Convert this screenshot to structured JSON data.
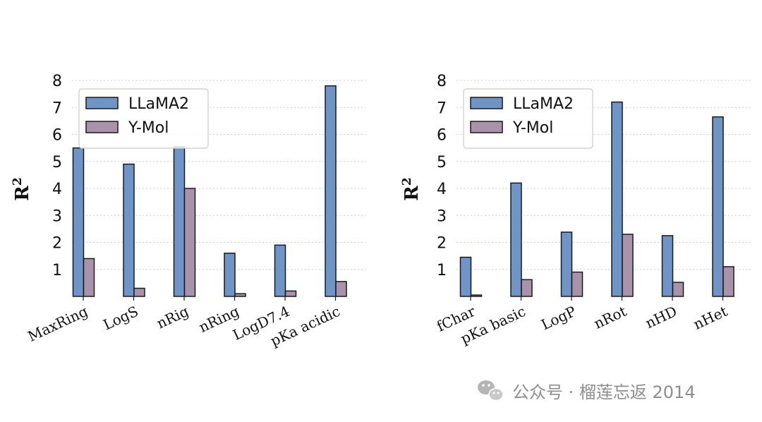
{
  "chart_data": [
    {
      "type": "bar",
      "categories": [
        "MaxRing",
        "LogS",
        "nRig",
        "nRing",
        "LogD7.4",
        "pKa acidic"
      ],
      "series": [
        {
          "name": "LLaMA2",
          "values": [
            5.5,
            4.9,
            5.55,
            1.6,
            1.9,
            7.8
          ]
        },
        {
          "name": "Y-Mol",
          "values": [
            1.4,
            0.3,
            4.0,
            0.1,
            0.2,
            0.55
          ]
        }
      ],
      "ylabel": "R",
      "ylabel_sup": "2",
      "ylim": [
        0,
        8.3
      ],
      "yticks": [
        "1",
        "2",
        "3",
        "4",
        "5",
        "6",
        "7",
        "8"
      ],
      "grid": "y-dotted",
      "legend_position": "top-left"
    },
    {
      "type": "bar",
      "categories": [
        "fChar",
        "pKa basic",
        "LogP",
        "nRot",
        "nHD",
        "nHet"
      ],
      "series": [
        {
          "name": "LLaMA2",
          "values": [
            1.45,
            4.2,
            2.38,
            7.2,
            2.25,
            6.65
          ]
        },
        {
          "name": "Y-Mol",
          "values": [
            0.05,
            0.62,
            0.9,
            2.3,
            0.52,
            1.1
          ]
        }
      ],
      "ylabel": "R",
      "ylabel_sup": "2",
      "ylim": [
        0,
        8.3
      ],
      "yticks": [
        "1",
        "2",
        "3",
        "4",
        "5",
        "6",
        "7",
        "8"
      ],
      "grid": "y-dotted",
      "legend_position": "top-left"
    }
  ],
  "colors": {
    "LLaMA2": "#6f95c6",
    "Y-Mol": "#a993aa"
  },
  "watermark": {
    "text": "公众号 · 榴莲忘返 2014",
    "icon": "wechat-icon"
  }
}
